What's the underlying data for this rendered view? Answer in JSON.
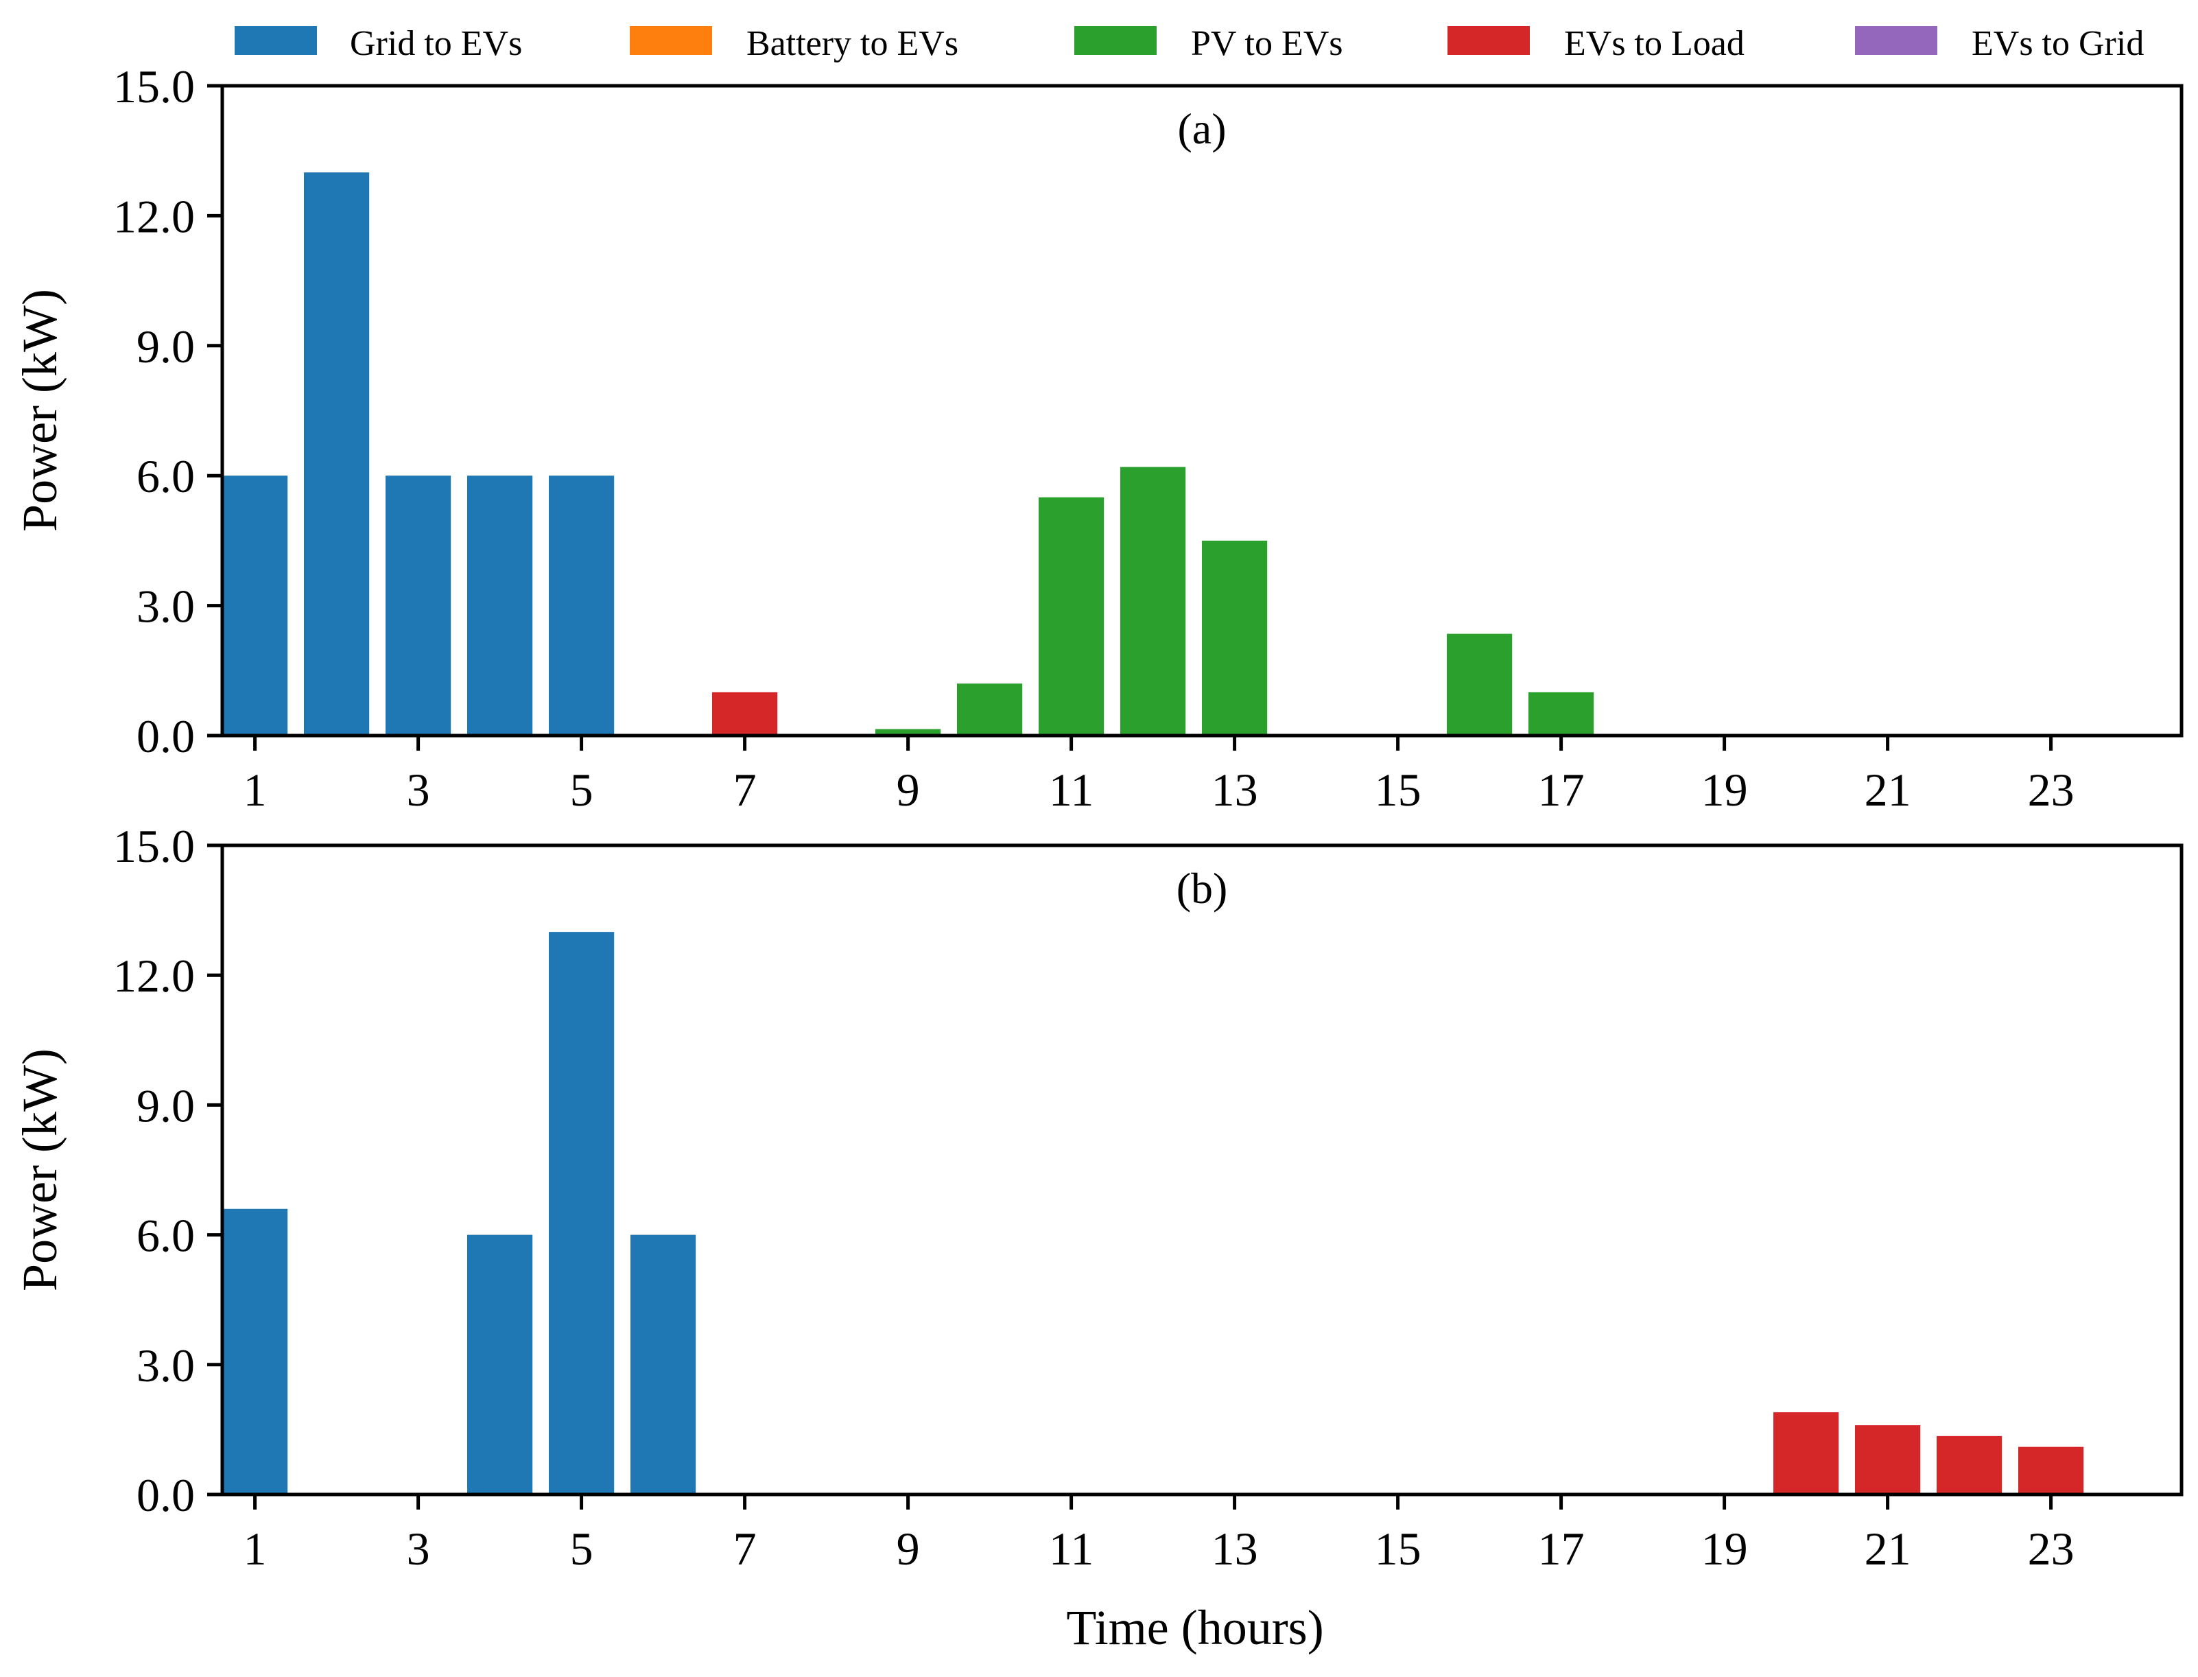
{
  "colors": {
    "grid_to_evs": "#1f77b4",
    "battery_to_evs": "#ff7f0e",
    "pv_to_evs": "#2ca02c",
    "evs_to_load": "#d62728",
    "evs_to_grid": "#9467bd"
  },
  "legend": [
    {
      "key": "grid_to_evs",
      "label": "Grid to EVs"
    },
    {
      "key": "battery_to_evs",
      "label": "Battery to EVs"
    },
    {
      "key": "pv_to_evs",
      "label": "PV to EVs"
    },
    {
      "key": "evs_to_load",
      "label": "EVs to Load"
    },
    {
      "key": "evs_to_grid",
      "label": "EVs to Grid"
    }
  ],
  "chart_data": [
    {
      "type": "bar",
      "title": "(a)",
      "xlabel": "",
      "ylabel": "Power (kW)",
      "ylim": [
        0,
        15
      ],
      "yticks": [
        "0.0",
        "3.0",
        "6.0",
        "9.0",
        "12.0",
        "15.0"
      ],
      "xticks": [
        "1",
        "3",
        "5",
        "7",
        "9",
        "11",
        "13",
        "15",
        "17",
        "19",
        "21",
        "23"
      ],
      "xlim": [
        0.6,
        24.6
      ],
      "series": [
        {
          "name": "Grid to EVs",
          "key": "grid_to_evs",
          "points": [
            [
              1,
              6.0
            ],
            [
              2,
              13.0
            ],
            [
              3,
              6.0
            ],
            [
              4,
              6.0
            ],
            [
              5,
              6.0
            ]
          ]
        },
        {
          "name": "Battery to EVs",
          "key": "battery_to_evs",
          "points": []
        },
        {
          "name": "PV to EVs",
          "key": "pv_to_evs",
          "points": [
            [
              9,
              0.15
            ],
            [
              10,
              1.2
            ],
            [
              11,
              5.5
            ],
            [
              12,
              6.2
            ],
            [
              13,
              4.5
            ],
            [
              16,
              2.35
            ],
            [
              17,
              1.0
            ]
          ]
        },
        {
          "name": "EVs to Load",
          "key": "evs_to_load",
          "points": [
            [
              7,
              1.0
            ]
          ]
        },
        {
          "name": "EVs to Grid",
          "key": "evs_to_grid",
          "points": []
        }
      ]
    },
    {
      "type": "bar",
      "title": "(b)",
      "xlabel": "Time (hours)",
      "ylabel": "Power (kW)",
      "ylim": [
        0,
        15
      ],
      "yticks": [
        "0.0",
        "3.0",
        "6.0",
        "9.0",
        "12.0",
        "15.0"
      ],
      "xticks": [
        "1",
        "3",
        "5",
        "7",
        "9",
        "11",
        "13",
        "15",
        "17",
        "19",
        "21",
        "23"
      ],
      "xlim": [
        0.6,
        24.6
      ],
      "series": [
        {
          "name": "Grid to EVs",
          "key": "grid_to_evs",
          "points": [
            [
              1,
              6.6
            ],
            [
              4,
              6.0
            ],
            [
              5,
              13.0
            ],
            [
              6,
              6.0
            ]
          ]
        },
        {
          "name": "Battery to EVs",
          "key": "battery_to_evs",
          "points": []
        },
        {
          "name": "PV to EVs",
          "key": "pv_to_evs",
          "points": []
        },
        {
          "name": "EVs to Load",
          "key": "evs_to_load",
          "points": [
            [
              20,
              1.9
            ],
            [
              21,
              1.6
            ],
            [
              22,
              1.35
            ],
            [
              23,
              1.1
            ]
          ]
        },
        {
          "name": "EVs to Grid",
          "key": "evs_to_grid",
          "points": []
        }
      ]
    }
  ]
}
